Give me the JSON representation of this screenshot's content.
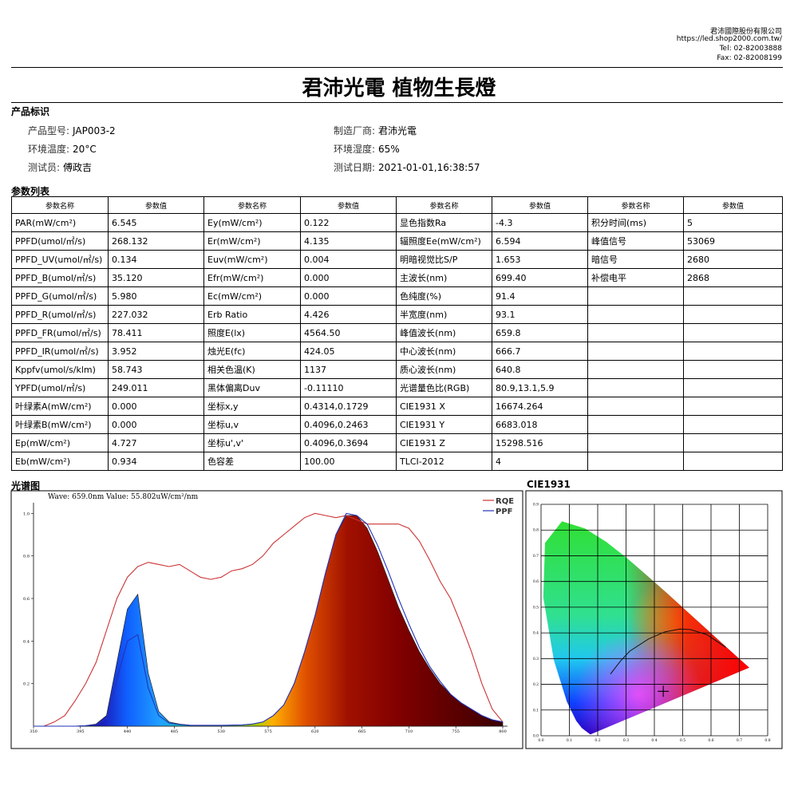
{
  "header": {
    "company": "君沛國際股份有限公司",
    "url": "https://led.shop2000.com.tw/",
    "tel": "Tel: 02-82003888",
    "fax": "Fax: 02-82008199"
  },
  "title": "君沛光電 植物生長燈",
  "product": {
    "title": "产品标识",
    "fields": [
      {
        "label": "产品型号:",
        "value": "JAP003-2"
      },
      {
        "label": "制造厂商:",
        "value": "君沛光電"
      },
      {
        "label": "环境温度:",
        "value": "20°C"
      },
      {
        "label": "环境湿度:",
        "value": "65%"
      },
      {
        "label": "测试员:",
        "value": "傅政吉"
      },
      {
        "label": "测试日期:",
        "value": "2021-01-01,16:38:57"
      }
    ]
  },
  "table": {
    "title": "参数列表",
    "header": [
      "参数名称",
      "参数值",
      "参数名称",
      "参数值",
      "参数名称",
      "参数值",
      "参数名称",
      "参数值"
    ],
    "rows": [
      [
        "PAR(mW/cm²)",
        "6.545",
        "Ey(mW/cm²)",
        "0.122",
        "显色指数Ra",
        "-4.3",
        "积分时间(ms)",
        "5"
      ],
      [
        "PPFD(umol/㎡/s)",
        "268.132",
        "Er(mW/cm²)",
        "4.135",
        "辐照度Ee(mW/cm²)",
        "6.594",
        "峰值信号",
        "53069"
      ],
      [
        "PPFD_UV(umol/㎡/s)",
        "0.134",
        "Euv(mW/cm²)",
        "0.004",
        "明暗视觉比S/P",
        "1.653",
        "暗信号",
        "2680"
      ],
      [
        "PPFD_B(umol/㎡/s)",
        "35.120",
        "Efr(mW/cm²)",
        "0.000",
        "主波长(nm)",
        "699.40",
        "补偿电平",
        "2868"
      ],
      [
        "PPFD_G(umol/㎡/s)",
        "5.980",
        "Ec(mW/cm²)",
        "0.000",
        "色纯度(%)",
        "91.4"
      ],
      [
        "PPFD_R(umol/㎡/s)",
        "227.032",
        "Erb Ratio",
        "4.426",
        "半宽度(nm)",
        "93.1"
      ],
      [
        "PPFD_FR(umol/㎡/s)",
        "78.411",
        "照度E(lx)",
        "4564.50",
        "峰值波长(nm)",
        "659.8"
      ],
      [
        "PPFD_IR(umol/㎡/s)",
        "3.952",
        "烛光E(fc)",
        "424.05",
        "中心波长(nm)",
        "666.7"
      ],
      [
        "Kppfv(umol/s/klm)",
        "58.743",
        "相关色温(K)",
        "1137",
        "质心波长(nm)",
        "640.8"
      ],
      [
        "YPFD(umol/㎡/s)",
        "249.011",
        "黑体偏离Duv",
        "-0.11110",
        "光谱量色比(RGB)",
        "80.9,13.1,5.9"
      ],
      [
        "叶绿素A(mW/cm²)",
        "0.000",
        "坐标x,y",
        "0.4314,0.1729",
        "CIE1931 X",
        "16674.264"
      ],
      [
        "叶绿素B(mW/cm²)",
        "0.000",
        "坐标u,v",
        "0.4096,0.2463",
        "CIE1931 Y",
        "6683.018"
      ],
      [
        "Ep(mW/cm²)",
        "4.727",
        "坐标u',v'",
        "0.4096,0.3694",
        "CIE1931 Z",
        "15298.516"
      ],
      [
        "Eb(mW/cm²)",
        "0.934",
        "色容差",
        "100.00",
        "TLCI-2012",
        "4"
      ]
    ]
  },
  "chart_data": [
    {
      "type": "line",
      "title": "光谱图",
      "annotation": "Wave: 659.0nm Value: 55.802uW/cm²/nm",
      "x": [
        350,
        360,
        370,
        380,
        390,
        400,
        410,
        420,
        430,
        440,
        450,
        460,
        470,
        480,
        490,
        500,
        510,
        520,
        530,
        540,
        550,
        560,
        570,
        580,
        590,
        600,
        610,
        620,
        630,
        640,
        650,
        660,
        670,
        680,
        690,
        700,
        710,
        720,
        730,
        740,
        750,
        760,
        770,
        780,
        790,
        800
      ],
      "xlim": [
        350,
        800
      ],
      "xticks": [
        350,
        395,
        440,
        485,
        530,
        575,
        620,
        665,
        710,
        755,
        800
      ],
      "ylim": [
        0,
        1.05
      ],
      "yticks": [
        0.2,
        0.4,
        0.6,
        0.8,
        {
          "value": 1,
          "label": "1.0"
        }
      ],
      "series": [
        {
          "values": [
            0,
            0,
            0,
            0,
            0,
            0.003,
            0.01,
            0.05,
            0.3,
            0.55,
            0.62,
            0.25,
            0.07,
            0.02,
            0.01,
            0.005,
            0.004,
            0.004,
            0.004,
            0.005,
            0.006,
            0.01,
            0.02,
            0.05,
            0.1,
            0.2,
            0.35,
            0.52,
            0.72,
            0.9,
            0.99,
            0.99,
            0.93,
            0.82,
            0.69,
            0.56,
            0.45,
            0.35,
            0.27,
            0.2,
            0.15,
            0.11,
            0.08,
            0.05,
            0.03,
            0.02
          ]
        },
        {
          "name": "RQE",
          "color": "#cc3333",
          "values": [
            0,
            0,
            0.02,
            0.05,
            0.12,
            0.2,
            0.3,
            0.45,
            0.6,
            0.7,
            0.75,
            0.77,
            0.76,
            0.75,
            0.76,
            0.73,
            0.7,
            0.69,
            0.7,
            0.73,
            0.74,
            0.76,
            0.8,
            0.86,
            0.9,
            0.94,
            0.98,
            1.0,
            0.99,
            0.98,
            0.99,
            0.97,
            0.95,
            0.95,
            0.95,
            0.95,
            0.93,
            0.87,
            0.78,
            0.68,
            0.6,
            0.48,
            0.35,
            0.2,
            0.08,
            0.02
          ]
        },
        {
          "name": "PPF",
          "color": "#2233bb",
          "values": [
            0,
            0,
            0,
            0,
            0,
            0.002,
            0.007,
            0.035,
            0.22,
            0.4,
            0.43,
            0.18,
            0.05,
            0.015,
            0.008,
            0.004,
            0.004,
            0.004,
            0.004,
            0.005,
            0.006,
            0.01,
            0.02,
            0.05,
            0.1,
            0.2,
            0.35,
            0.52,
            0.72,
            0.9,
            1.0,
            0.99,
            0.95,
            0.85,
            0.73,
            0.6,
            0.48,
            0.37,
            0.28,
            0.21,
            0.15,
            0.11,
            0.08,
            0.05,
            0.03,
            0.02
          ]
        }
      ]
    },
    {
      "type": "scatter",
      "title": "CIE1931",
      "x": [
        0.4314
      ],
      "values": [
        0.1729
      ],
      "xlim": [
        0,
        0.8
      ],
      "ylim": [
        0,
        0.9
      ],
      "grid": true,
      "xticks": [
        {
          "value": 0,
          "label": "0.0"
        },
        0.1,
        0.2,
        0.3,
        0.4,
        0.5,
        0.6,
        0.7,
        0.8
      ],
      "yticks": [
        {
          "value": 0,
          "label": "0.0"
        },
        0.1,
        0.2,
        0.3,
        0.4,
        0.5,
        0.6,
        0.7,
        0.8,
        0.9
      ]
    }
  ]
}
